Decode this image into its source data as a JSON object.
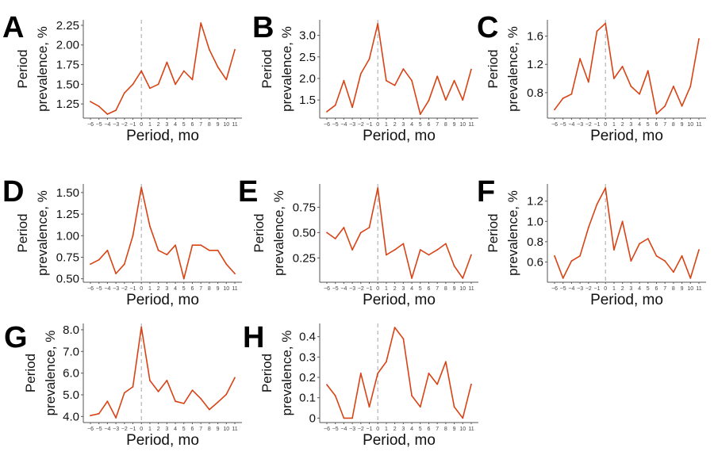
{
  "colors": {
    "line": "#d84315",
    "zero_line": "#bbbbbb",
    "axis": "#555555"
  },
  "chart_data": [
    {
      "panel": "A",
      "type": "line",
      "xlabel": "Period, mo",
      "ylabel_lines": [
        "Period",
        "prevalence, %"
      ],
      "x": [
        -6,
        -5,
        -4,
        -3,
        -2,
        -1,
        0,
        1,
        2,
        3,
        4,
        5,
        6,
        7,
        8,
        9,
        10,
        11
      ],
      "values": [
        1.28,
        1.22,
        1.12,
        1.17,
        1.39,
        1.5,
        1.67,
        1.45,
        1.5,
        1.78,
        1.5,
        1.67,
        1.56,
        2.28,
        1.94,
        1.72,
        1.56,
        1.94
      ],
      "ylim": [
        1.07,
        2.32
      ],
      "yticks": [
        1.25,
        1.5,
        1.75,
        2.0,
        2.25
      ],
      "ytick_labels": [
        "1.25",
        "1.50",
        "1.75",
        "2.00",
        "2.25"
      ],
      "reference_x": 0
    },
    {
      "panel": "B",
      "type": "line",
      "xlabel": "Period, mo",
      "ylabel_lines": [
        "Period",
        "prevalence, %"
      ],
      "x": [
        -6,
        -5,
        -4,
        -3,
        -2,
        -1,
        0,
        1,
        2,
        3,
        4,
        5,
        6,
        7,
        8,
        9,
        10,
        11
      ],
      "values": [
        1.23,
        1.38,
        1.95,
        1.33,
        2.11,
        2.45,
        3.27,
        1.95,
        1.84,
        2.22,
        1.95,
        1.17,
        1.49,
        2.05,
        1.5,
        1.95,
        1.5,
        2.21
      ],
      "ylim": [
        1.08,
        3.36
      ],
      "yticks": [
        1.5,
        2.0,
        2.5,
        3.0
      ],
      "ytick_labels": [
        "1.5",
        "2.0",
        "2.5",
        "3.0"
      ],
      "reference_x": 0
    },
    {
      "panel": "C",
      "type": "line",
      "xlabel": "Period, mo",
      "ylabel_lines": [
        "Period",
        "prevalence, %"
      ],
      "x": [
        -6,
        -5,
        -4,
        -3,
        -2,
        -1,
        0,
        1,
        2,
        3,
        4,
        5,
        6,
        7,
        8,
        9,
        10,
        11
      ],
      "values": [
        0.56,
        0.72,
        0.78,
        1.28,
        0.95,
        1.67,
        1.78,
        1.0,
        1.17,
        0.89,
        0.78,
        1.11,
        0.5,
        0.61,
        0.89,
        0.61,
        0.89,
        1.56
      ],
      "ylim": [
        0.44,
        1.83
      ],
      "yticks": [
        0.8,
        1.2,
        1.6
      ],
      "ytick_labels": [
        "0.8",
        "1.2",
        "1.6"
      ],
      "reference_x": 0
    },
    {
      "panel": "D",
      "type": "line",
      "xlabel": "Period, mo",
      "ylabel_lines": [
        "Period",
        "prevalence, %"
      ],
      "x": [
        -6,
        -5,
        -4,
        -3,
        -2,
        -1,
        0,
        1,
        2,
        3,
        4,
        5,
        6,
        7,
        8,
        9,
        10,
        11
      ],
      "values": [
        0.67,
        0.72,
        0.83,
        0.56,
        0.67,
        1.0,
        1.56,
        1.11,
        0.83,
        0.78,
        0.89,
        0.5,
        0.89,
        0.89,
        0.83,
        0.83,
        0.67,
        0.56
      ],
      "ylim": [
        0.46,
        1.6
      ],
      "yticks": [
        0.5,
        0.75,
        1.0,
        1.25,
        1.5
      ],
      "ytick_labels": [
        "0.50",
        "0.75",
        "1.00",
        "1.25",
        "1.50"
      ],
      "reference_x": 0
    },
    {
      "panel": "E",
      "type": "line",
      "xlabel": "Period, mo",
      "ylabel_lines": [
        "Period",
        "prevalence, %"
      ],
      "x": [
        -6,
        -5,
        -4,
        -3,
        -2,
        -1,
        0,
        1,
        2,
        3,
        4,
        5,
        6,
        7,
        8,
        9,
        10,
        11
      ],
      "values": [
        0.5,
        0.44,
        0.55,
        0.33,
        0.5,
        0.55,
        0.94,
        0.28,
        0.33,
        0.39,
        0.05,
        0.33,
        0.28,
        0.33,
        0.39,
        0.17,
        0.05,
        0.28
      ],
      "ylim": [
        0.01,
        0.98
      ],
      "yticks": [
        0.25,
        0.5,
        0.75
      ],
      "ytick_labels": [
        "0.25",
        "0.50",
        "0.75"
      ],
      "reference_x": 0
    },
    {
      "panel": "F",
      "type": "line",
      "xlabel": "Period, mo",
      "ylabel_lines": [
        "Period",
        "prevalence, %"
      ],
      "x": [
        -6,
        -5,
        -4,
        -3,
        -2,
        -1,
        0,
        1,
        2,
        3,
        4,
        5,
        6,
        7,
        8,
        9,
        10,
        11
      ],
      "values": [
        0.66,
        0.44,
        0.61,
        0.66,
        0.94,
        1.17,
        1.33,
        0.72,
        1.0,
        0.61,
        0.78,
        0.83,
        0.66,
        0.61,
        0.5,
        0.66,
        0.44,
        0.72
      ],
      "ylim": [
        0.4,
        1.37
      ],
      "yticks": [
        0.6,
        0.8,
        1.0,
        1.2
      ],
      "ytick_labels": [
        "0.6",
        "0.8",
        "1.0",
        "1.2"
      ],
      "reference_x": 0
    },
    {
      "panel": "G",
      "type": "line",
      "xlabel": "Period, mo",
      "ylabel_lines": [
        "Period",
        "prevalence, %"
      ],
      "x": [
        -6,
        -5,
        -4,
        -3,
        -2,
        -1,
        0,
        1,
        2,
        3,
        4,
        5,
        6,
        7,
        8,
        9,
        10,
        11
      ],
      "values": [
        4.04,
        4.13,
        4.7,
        3.94,
        5.09,
        5.37,
        8.12,
        5.66,
        5.15,
        5.66,
        4.7,
        4.6,
        5.21,
        4.82,
        4.32,
        4.66,
        5.02,
        5.79
      ],
      "ylim": [
        3.72,
        8.29
      ],
      "yticks": [
        4,
        5,
        6,
        7,
        8
      ],
      "ytick_labels": [
        "4.0",
        "5.0",
        "6.0",
        "7.0",
        "8.0"
      ],
      "reference_x": 0
    },
    {
      "panel": "H",
      "type": "line",
      "xlabel": "Period, mo",
      "ylabel_lines": [
        "Period",
        "prevalence, %"
      ],
      "x": [
        -6,
        -5,
        -4,
        -3,
        -2,
        -1,
        0,
        1,
        2,
        3,
        4,
        5,
        6,
        7,
        8,
        9,
        10,
        11
      ],
      "values": [
        0.164,
        0.11,
        0,
        0,
        0.22,
        0.055,
        0.22,
        0.277,
        0.445,
        0.39,
        0.11,
        0.055,
        0.22,
        0.166,
        0.277,
        0.055,
        0,
        0.166
      ],
      "ylim": [
        -0.022,
        0.465
      ],
      "yticks": [
        0,
        0.1,
        0.2,
        0.3,
        0.4
      ],
      "ytick_labels": [
        "0",
        "0.1",
        "0.2",
        "0.3",
        "0.4"
      ],
      "reference_x": 0
    }
  ]
}
